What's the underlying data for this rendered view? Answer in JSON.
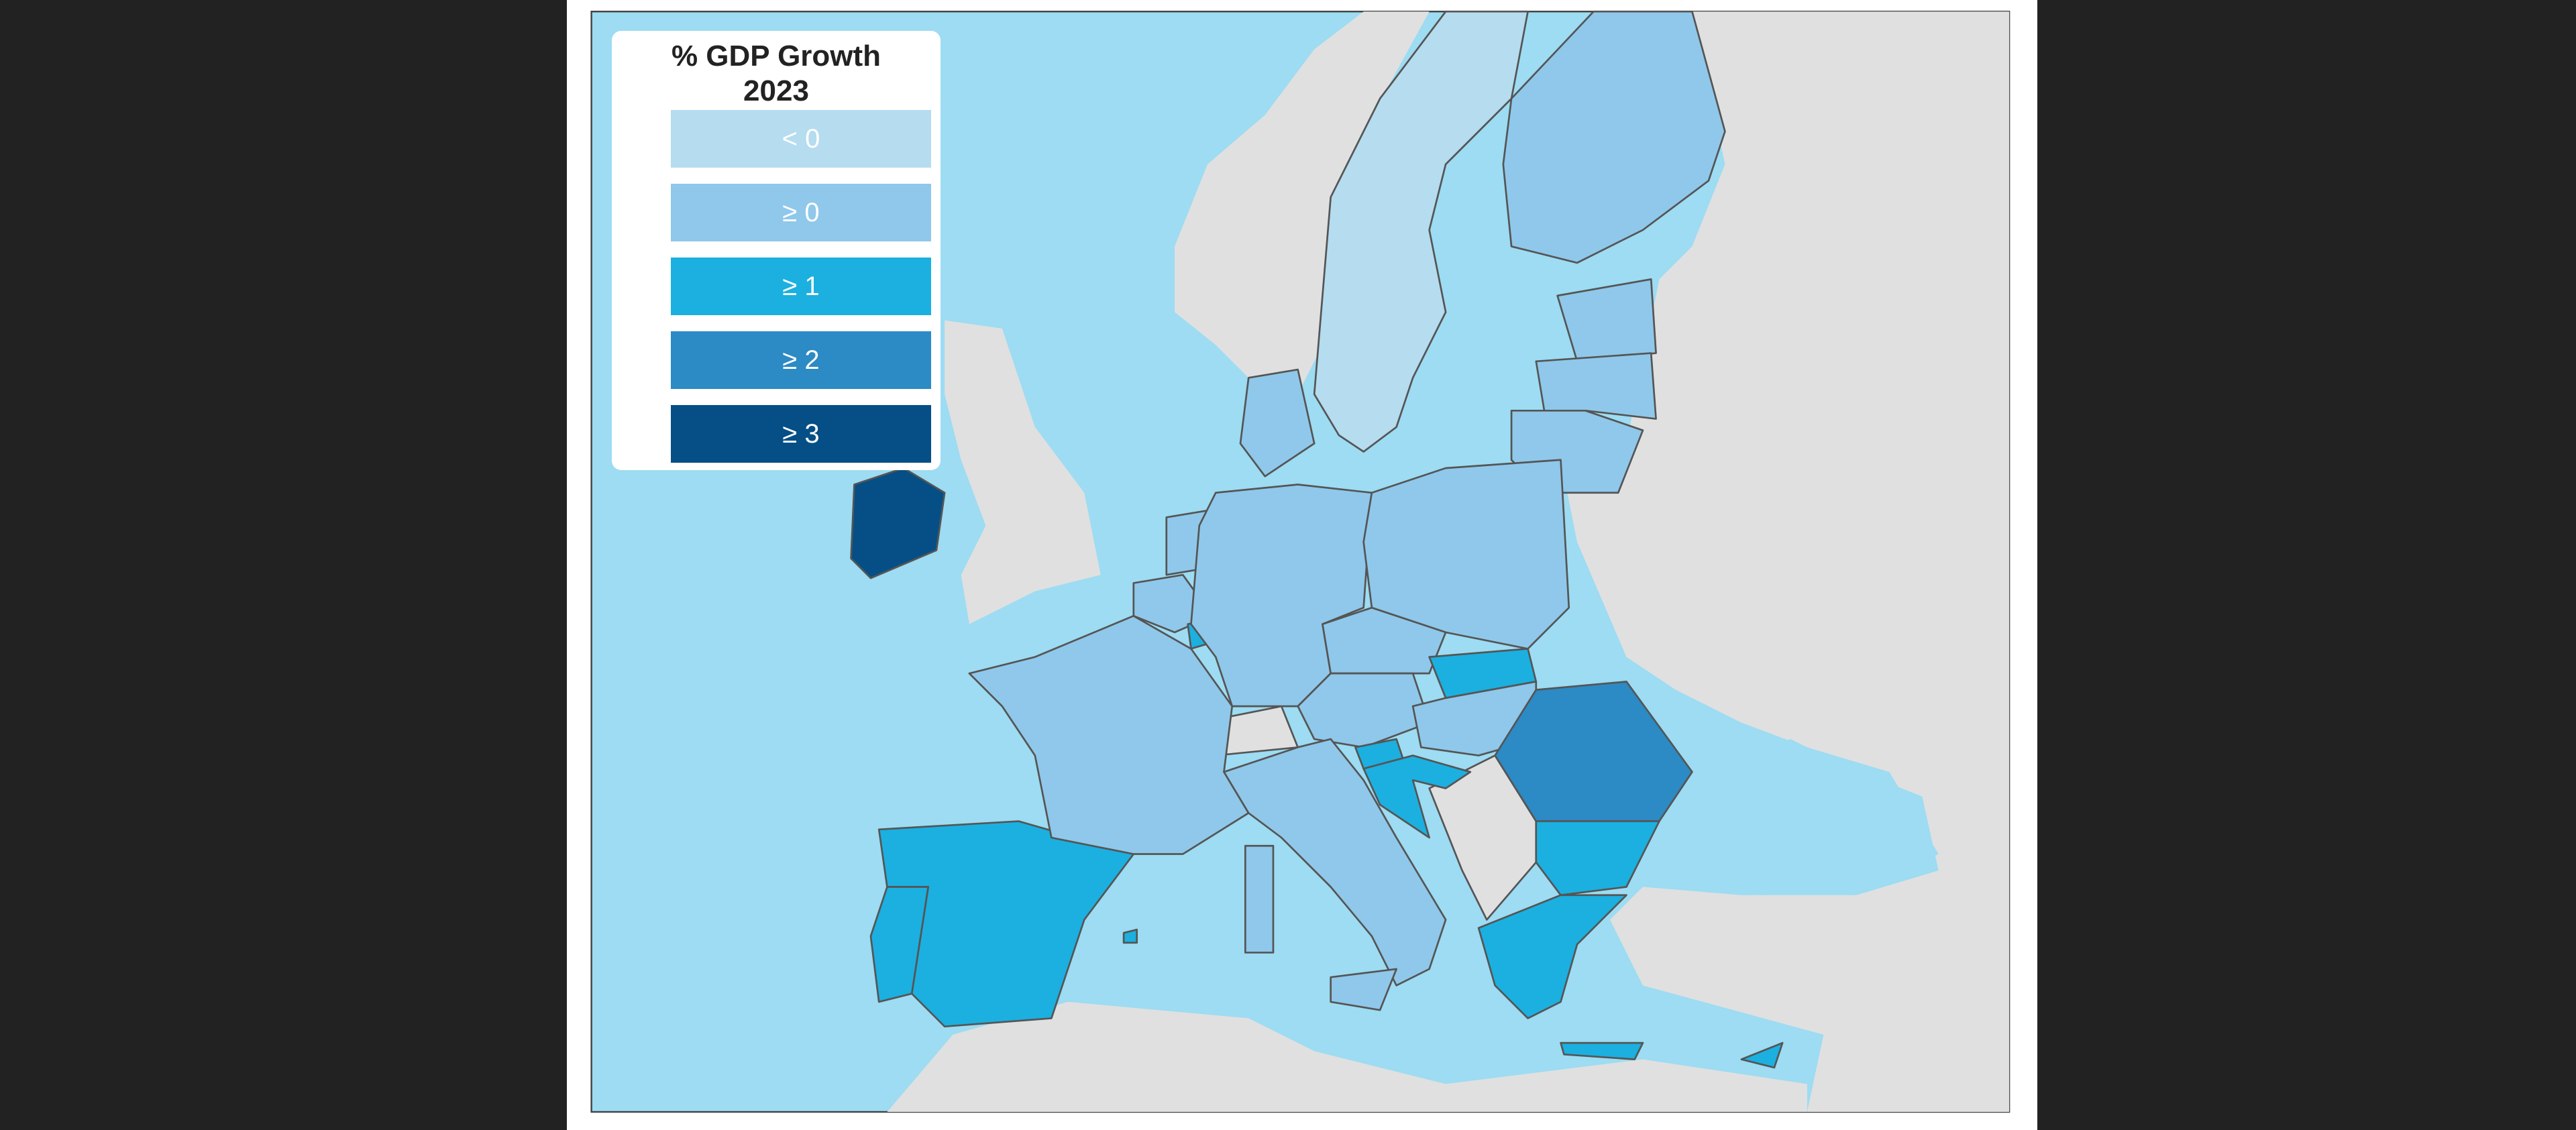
{
  "chart_data": {
    "type": "choropleth",
    "title": "% GDP Growth 2023",
    "title_lines": [
      "% GDP Growth",
      "2023"
    ],
    "legend": [
      {
        "label": "< 0",
        "color": "#b5dcef"
      },
      {
        "label": "≥ 0",
        "color": "#8fc8ea"
      },
      {
        "label": "≥ 1",
        "color": "#1bb0e0"
      },
      {
        "label": "≥ 2",
        "color": "#2c8ac4"
      },
      {
        "label": "≥ 3",
        "color": "#054f86"
      }
    ],
    "legend_placement": "top-left",
    "colors": {
      "sea": "#9ddcf2",
      "non_member_land": "#e0e0e0",
      "border": "#555555"
    },
    "regions": [
      {
        "code": "IE",
        "class": 4
      },
      {
        "code": "ES",
        "class": 2
      },
      {
        "code": "PT",
        "class": 2
      },
      {
        "code": "FR",
        "class": 1
      },
      {
        "code": "BE",
        "class": 1
      },
      {
        "code": "NL",
        "class": 1
      },
      {
        "code": "LU",
        "class": 2
      },
      {
        "code": "DE",
        "class": 1
      },
      {
        "code": "DK",
        "class": 1
      },
      {
        "code": "SE",
        "class": 0
      },
      {
        "code": "FI",
        "class": 1
      },
      {
        "code": "EE",
        "class": 1
      },
      {
        "code": "LV",
        "class": 1
      },
      {
        "code": "LT",
        "class": 1
      },
      {
        "code": "PL",
        "class": 1
      },
      {
        "code": "CZ",
        "class": 1
      },
      {
        "code": "SK",
        "class": 2
      },
      {
        "code": "AT",
        "class": 1
      },
      {
        "code": "HU",
        "class": 1
      },
      {
        "code": "SI",
        "class": 2
      },
      {
        "code": "HR",
        "class": 2
      },
      {
        "code": "RO",
        "class": 3
      },
      {
        "code": "BG",
        "class": 2
      },
      {
        "code": "GR",
        "class": 2
      },
      {
        "code": "IT",
        "class": 1
      },
      {
        "code": "MT",
        "class": 2
      },
      {
        "code": "CY",
        "class": 2
      }
    ]
  }
}
